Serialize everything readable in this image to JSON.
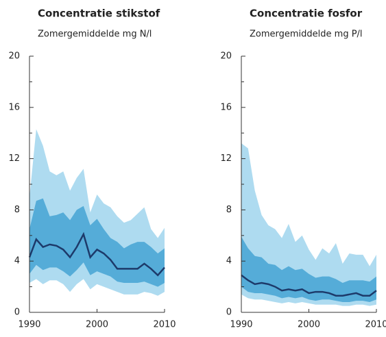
{
  "chart_data": [
    {
      "type": "fan",
      "title": "Concentratie stikstof",
      "subtitle": "Zomergemiddelde mg N/l",
      "x": [
        1990,
        1991,
        1992,
        1993,
        1994,
        1995,
        1996,
        1997,
        1998,
        1999,
        2000,
        2001,
        2002,
        2003,
        2004,
        2005,
        2006,
        2007,
        2008,
        2009,
        2010
      ],
      "xlim": [
        1990,
        2010
      ],
      "xticks": [
        1990,
        2000,
        2010
      ],
      "ylim": [
        0,
        20
      ],
      "yticks": [
        0,
        4,
        8,
        12,
        16,
        20
      ],
      "bands": [
        {
          "color": "#aedbf0",
          "upper": [
            9,
            14.3,
            13,
            11,
            10.7,
            11,
            9.5,
            10.5,
            11.2,
            7.8,
            9.2,
            8.5,
            8.2,
            7.5,
            7,
            7.2,
            7.7,
            8.2,
            6.5,
            5.8,
            6.6
          ],
          "lower": [
            2.3,
            2.6,
            2.2,
            2.5,
            2.5,
            2.2,
            1.6,
            2.2,
            2.6,
            1.8,
            2.2,
            2.0,
            1.8,
            1.6,
            1.4,
            1.4,
            1.4,
            1.6,
            1.5,
            1.3,
            1.6
          ]
        },
        {
          "color": "#55acd8",
          "upper": [
            6.5,
            8.7,
            8.9,
            7.5,
            7.6,
            7.8,
            7.2,
            8,
            8.3,
            6.8,
            7.3,
            6.5,
            5.8,
            5.5,
            5,
            5.3,
            5.5,
            5.5,
            5.1,
            4.6,
            5
          ],
          "lower": [
            3.0,
            3.7,
            3.3,
            3.5,
            3.5,
            3.2,
            2.8,
            3.3,
            3.9,
            2.9,
            3.2,
            3.0,
            2.8,
            2.4,
            2.3,
            2.3,
            2.3,
            2.4,
            2.2,
            2.0,
            2.3
          ]
        }
      ],
      "line": {
        "color": "#1d3a6a",
        "values": [
          4.3,
          5.7,
          5.1,
          5.3,
          5.2,
          4.9,
          4.3,
          5.1,
          6.1,
          4.3,
          4.9,
          4.6,
          4.1,
          3.4,
          3.4,
          3.4,
          3.4,
          3.8,
          3.4,
          2.9,
          3.5
        ]
      }
    },
    {
      "type": "fan",
      "title": "Concentratie fosfor",
      "subtitle": "Zomergemiddelde mg P/l",
      "x": [
        1990,
        1991,
        1992,
        1993,
        1994,
        1995,
        1996,
        1997,
        1998,
        1999,
        2000,
        2001,
        2002,
        2003,
        2004,
        2005,
        2006,
        2007,
        2008,
        2009,
        2010
      ],
      "xlim": [
        1990,
        2010
      ],
      "xticks": [
        1990,
        2000,
        2010
      ],
      "ylim": [
        0,
        20
      ],
      "yticks": [
        0,
        4,
        8,
        12,
        16,
        20
      ],
      "bands": [
        {
          "color": "#aedbf0",
          "upper": [
            13.2,
            12.8,
            9.5,
            7.6,
            6.8,
            6.5,
            5.8,
            6.9,
            5.5,
            6.0,
            4.9,
            4.1,
            5.0,
            4.6,
            5.4,
            3.8,
            4.6,
            4.5,
            4.5,
            3.6,
            4.5
          ],
          "lower": [
            1.4,
            1.1,
            1.0,
            1.0,
            0.9,
            0.8,
            0.7,
            0.8,
            0.7,
            0.8,
            0.7,
            0.6,
            0.6,
            0.6,
            0.6,
            0.5,
            0.5,
            0.6,
            0.6,
            0.5,
            0.6
          ]
        },
        {
          "color": "#55acd8",
          "upper": [
            5.9,
            5.0,
            4.4,
            4.3,
            3.8,
            3.7,
            3.3,
            3.6,
            3.3,
            3.4,
            3.0,
            2.7,
            2.8,
            2.8,
            2.6,
            2.3,
            2.5,
            2.5,
            2.5,
            2.4,
            2.8
          ],
          "lower": [
            2.0,
            1.6,
            1.5,
            1.5,
            1.4,
            1.3,
            1.1,
            1.2,
            1.1,
            1.2,
            1.0,
            0.9,
            1.0,
            1.0,
            0.9,
            0.8,
            0.8,
            0.9,
            0.9,
            0.8,
            1.0
          ]
        }
      ],
      "line": {
        "color": "#1d3a6a",
        "values": [
          2.9,
          2.5,
          2.2,
          2.3,
          2.2,
          2.0,
          1.7,
          1.8,
          1.7,
          1.8,
          1.5,
          1.6,
          1.6,
          1.5,
          1.3,
          1.3,
          1.4,
          1.5,
          1.3,
          1.3,
          1.7
        ]
      }
    }
  ]
}
